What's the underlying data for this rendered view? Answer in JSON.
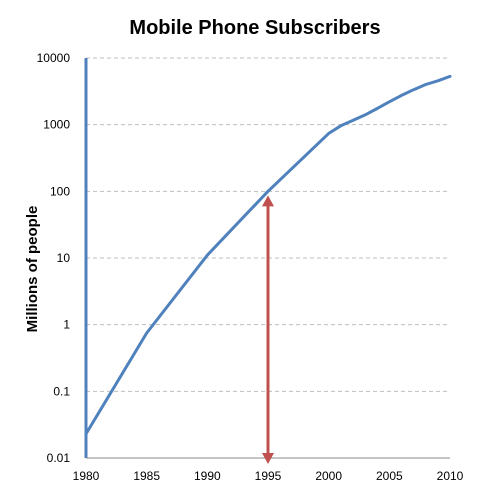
{
  "chart_data": {
    "type": "line",
    "title": "Mobile Phone Subscribers",
    "xlabel": "",
    "ylabel": "Millions of people",
    "y_scale": "log",
    "ylim": [
      0.01,
      10000
    ],
    "xlim": [
      1980,
      2010
    ],
    "grid": true,
    "legend": "none",
    "x_ticks": [
      "1980",
      "1985",
      "1990",
      "1995",
      "2000",
      "2005",
      "2010"
    ],
    "y_ticks": [
      "0.01",
      "0.1",
      "1",
      "10",
      "100",
      "1000",
      "10000"
    ],
    "series": [
      {
        "color": "#4F81BD",
        "x": [
          1980,
          1985,
          1990,
          1995,
          2000,
          2001,
          2002,
          2003,
          2004,
          2005,
          2006,
          2007,
          2008,
          2009,
          2010
        ],
        "y": [
          0.023,
          0.75,
          11,
          100,
          740,
          960,
          1160,
          1400,
          1750,
          2200,
          2750,
          3350,
          4000,
          4550,
          5300
        ]
      }
    ],
    "annotation": {
      "type": "double-arrow",
      "color": "#C0504D",
      "x": 1995,
      "y_from": 0.01,
      "y_to": 100
    },
    "colors": {
      "axis": "#4F81BD",
      "grid": "#BFBFBF"
    }
  }
}
